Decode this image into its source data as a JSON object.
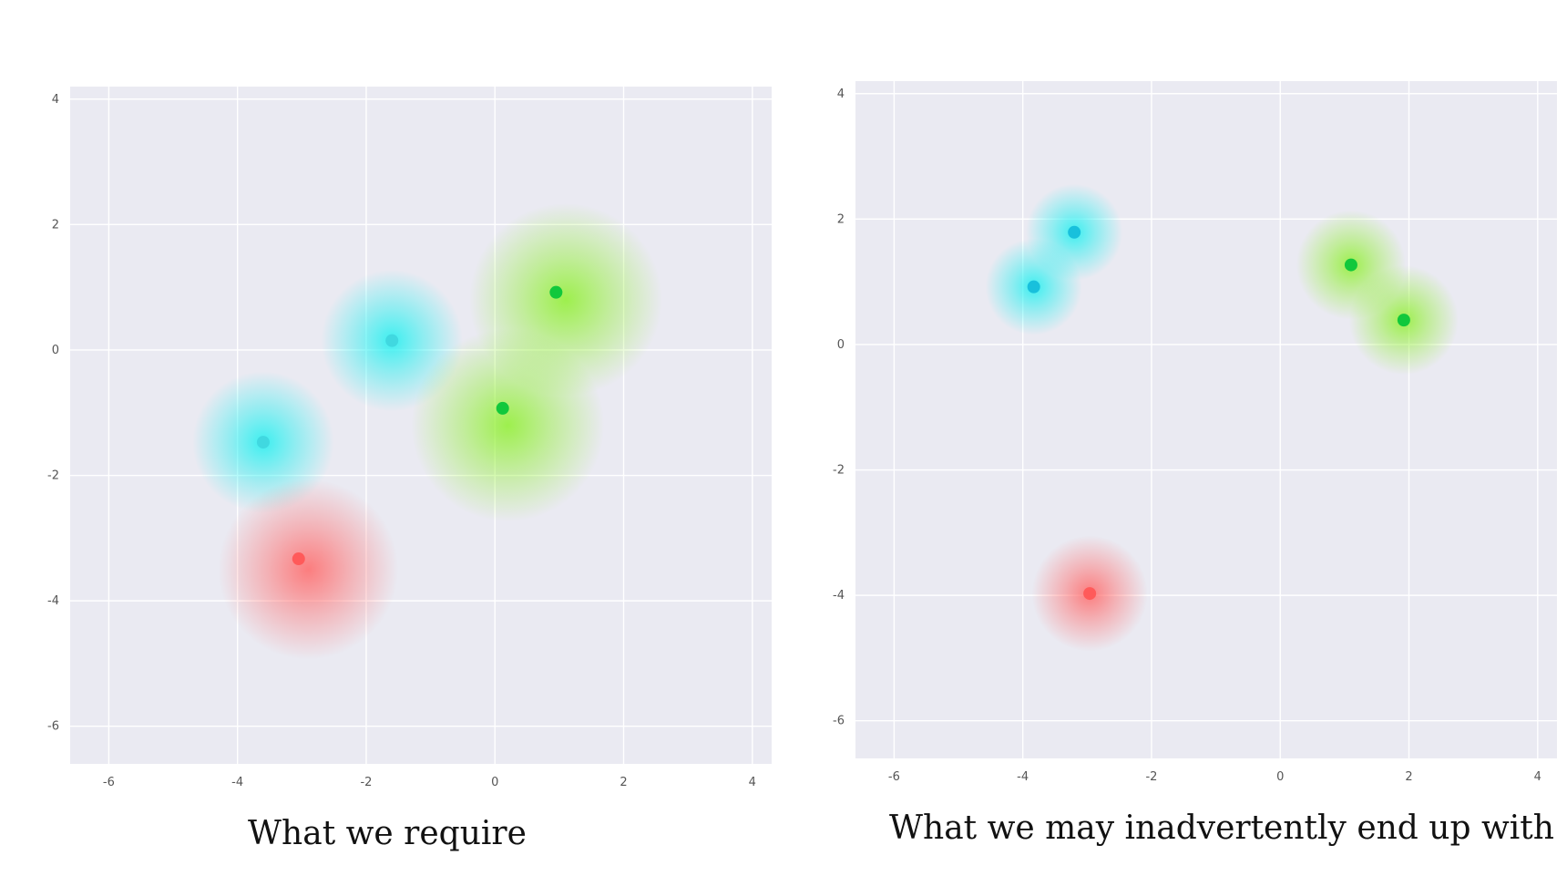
{
  "chart_data": [
    {
      "type": "scatter",
      "title": "",
      "caption": "What we require",
      "xlabel": "",
      "ylabel": "",
      "xlim": [
        -6.6,
        4.3
      ],
      "ylim": [
        -6.6,
        4.2
      ],
      "xticks": [
        -6,
        -4,
        -2,
        0,
        2,
        4
      ],
      "yticks": [
        4,
        2,
        0,
        -2,
        -4,
        -6
      ],
      "grid": true,
      "background": "#eaeaf2",
      "series": [
        {
          "color": "#40d8e0",
          "glow_color": "#20f0f0",
          "points": [
            {
              "x": -1.6,
              "y": 0.15
            },
            {
              "x": -3.6,
              "y": -1.47
            }
          ],
          "glow_centers": [
            {
              "x": -1.6,
              "y": 0.15
            },
            {
              "x": -3.6,
              "y": -1.47
            }
          ],
          "glow_spread": 1.1
        },
        {
          "color": "#11c83c",
          "glow_color": "#90f030",
          "points": [
            {
              "x": 0.95,
              "y": 0.92
            },
            {
              "x": 0.12,
              "y": -0.93
            }
          ],
          "glow_centers": [
            {
              "x": 1.1,
              "y": 0.8
            },
            {
              "x": 0.2,
              "y": -1.2
            }
          ],
          "glow_spread": 1.5
        },
        {
          "color": "#ff5a5a",
          "glow_color": "#ff6a6a",
          "points": [
            {
              "x": -3.05,
              "y": -3.33
            }
          ],
          "glow_centers": [
            {
              "x": -2.9,
              "y": -3.5
            }
          ],
          "glow_spread": 1.4
        }
      ]
    },
    {
      "type": "scatter",
      "title": "",
      "caption": "What we may inadvertently end up with",
      "xlabel": "",
      "ylabel": "",
      "xlim": [
        -6.6,
        4.3
      ],
      "ylim": [
        -6.6,
        4.2
      ],
      "xticks": [
        -6,
        -4,
        -2,
        0,
        2,
        4
      ],
      "yticks": [
        4,
        2,
        0,
        -2,
        -4,
        -6
      ],
      "grid": true,
      "background": "#eaeaf2",
      "series": [
        {
          "color": "#18c0dc",
          "glow_color": "#20f0f0",
          "points": [
            {
              "x": -3.2,
              "y": 1.79
            },
            {
              "x": -3.83,
              "y": 0.92
            }
          ],
          "glow_centers": [
            {
              "x": -3.2,
              "y": 1.79
            },
            {
              "x": -3.83,
              "y": 0.92
            }
          ],
          "glow_spread": 0.75
        },
        {
          "color": "#11c83c",
          "glow_color": "#90f030",
          "points": [
            {
              "x": 1.1,
              "y": 1.27
            },
            {
              "x": 1.92,
              "y": 0.39
            }
          ],
          "glow_centers": [
            {
              "x": 1.1,
              "y": 1.27
            },
            {
              "x": 1.92,
              "y": 0.39
            }
          ],
          "glow_spread": 0.85
        },
        {
          "color": "#ff5a5a",
          "glow_color": "#ff6a6a",
          "points": [
            {
              "x": -2.96,
              "y": -3.97
            }
          ],
          "glow_centers": [
            {
              "x": -2.96,
              "y": -3.97
            }
          ],
          "glow_spread": 0.9
        }
      ]
    }
  ]
}
